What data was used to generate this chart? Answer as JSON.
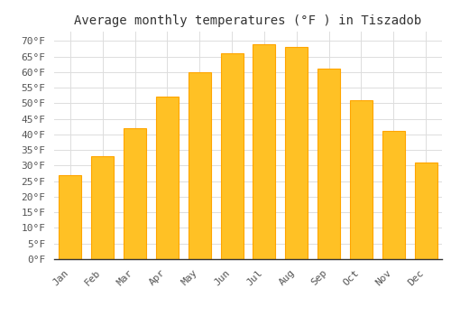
{
  "title": "Average monthly temperatures (°F ) in Tiszadob",
  "months": [
    "Jan",
    "Feb",
    "Mar",
    "Apr",
    "May",
    "Jun",
    "Jul",
    "Aug",
    "Sep",
    "Oct",
    "Nov",
    "Dec"
  ],
  "values": [
    27,
    33,
    42,
    52,
    60,
    66,
    69,
    68,
    61,
    51,
    41,
    31
  ],
  "bar_color": "#FFC125",
  "bar_edge_color": "#FFA500",
  "background_color": "#FFFFFF",
  "grid_color": "#DDDDDD",
  "ylim": [
    0,
    73
  ],
  "yticks": [
    0,
    5,
    10,
    15,
    20,
    25,
    30,
    35,
    40,
    45,
    50,
    55,
    60,
    65,
    70
  ],
  "title_fontsize": 10,
  "tick_fontsize": 8,
  "font_family": "monospace"
}
